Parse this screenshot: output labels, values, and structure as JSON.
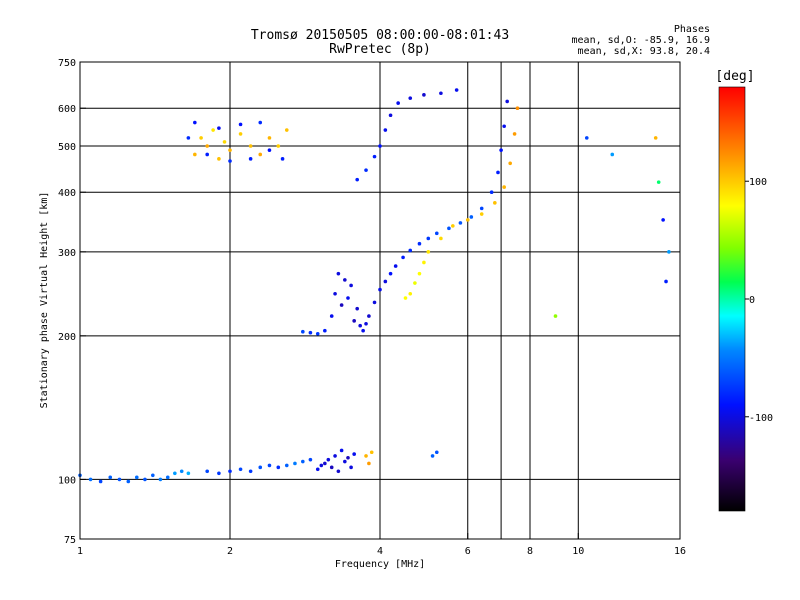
{
  "header": {
    "title": "Tromsø 20150505 08:00:00-08:01:43",
    "subtitle": "RwPretec (8p)",
    "stats_title": "Phases",
    "stats_o": "mean, sd,O: -85.9, 16.9",
    "stats_x": "mean, sd,X:  93.8, 20.4"
  },
  "colorbar": {
    "label": "[deg]",
    "ticks": [
      {
        "value": 100,
        "label": "100"
      },
      {
        "value": 0,
        "label": "0"
      },
      {
        "value": -100,
        "label": "-100"
      }
    ],
    "range": [
      -180,
      180
    ]
  },
  "chart_data": {
    "type": "scatter",
    "title": "Tromsø 20150505 08:00:00-08:01:43",
    "subtitle": "RwPretec (8p)",
    "xlabel": "Frequency [MHz]",
    "ylabel": "Stationary phase Virtual Height [km]",
    "xscale": "log",
    "yscale": "log",
    "xlim": [
      1,
      16
    ],
    "ylim": [
      75,
      750
    ],
    "xticks": [
      1,
      2,
      4,
      6,
      8,
      10,
      16
    ],
    "yticks": [
      75,
      100,
      200,
      300,
      400,
      500,
      600,
      750
    ],
    "xgrid": [
      2,
      4,
      6,
      7,
      8,
      10
    ],
    "ygrid": [
      100,
      200,
      300,
      400,
      500,
      600
    ],
    "color_variable": "phase [deg]",
    "series": [
      {
        "points": [
          [
            1.0,
            102,
            -60
          ],
          [
            1.05,
            100,
            -55
          ],
          [
            1.1,
            99,
            -70
          ],
          [
            1.15,
            101,
            -60
          ],
          [
            1.2,
            100,
            -65
          ],
          [
            1.25,
            99,
            -60
          ],
          [
            1.3,
            101,
            -55
          ],
          [
            1.35,
            100,
            -65
          ],
          [
            1.4,
            102,
            -60
          ],
          [
            1.45,
            100,
            -50
          ],
          [
            1.5,
            101,
            -55
          ],
          [
            1.55,
            103,
            -40
          ],
          [
            1.6,
            104,
            -45
          ],
          [
            1.65,
            103,
            -35
          ]
        ]
      },
      {
        "points": [
          [
            1.8,
            104,
            -70
          ],
          [
            1.9,
            103,
            -75
          ],
          [
            2.0,
            104,
            -80
          ],
          [
            2.1,
            105,
            -70
          ],
          [
            2.2,
            104,
            -75
          ],
          [
            2.3,
            106,
            -65
          ],
          [
            2.4,
            107,
            -70
          ],
          [
            2.5,
            106,
            -80
          ],
          [
            2.6,
            107,
            -60
          ],
          [
            2.7,
            108,
            -50
          ],
          [
            2.8,
            109,
            -60
          ],
          [
            2.9,
            110,
            -70
          ]
        ]
      },
      {
        "points": [
          [
            3.0,
            105,
            -95
          ],
          [
            3.05,
            107,
            -100
          ],
          [
            3.1,
            108,
            -105
          ],
          [
            3.15,
            110,
            -100
          ],
          [
            3.2,
            106,
            -110
          ],
          [
            3.25,
            112,
            -100
          ],
          [
            3.3,
            104,
            -105
          ],
          [
            3.35,
            115,
            -95
          ],
          [
            3.4,
            109,
            -100
          ],
          [
            3.45,
            111,
            -110
          ],
          [
            3.5,
            106,
            -100
          ],
          [
            3.55,
            113,
            -95
          ]
        ]
      },
      {
        "points": [
          [
            3.75,
            112,
            110
          ],
          [
            3.8,
            108,
            120
          ],
          [
            3.85,
            114,
            105
          ]
        ]
      },
      {
        "points": [
          [
            2.8,
            204,
            -70
          ],
          [
            2.9,
            203,
            -80
          ],
          [
            3.0,
            202,
            -75
          ],
          [
            3.1,
            205,
            -85
          ]
        ]
      },
      {
        "points": [
          [
            3.2,
            220,
            -95
          ],
          [
            3.25,
            245,
            -100
          ],
          [
            3.3,
            270,
            -100
          ],
          [
            3.35,
            232,
            -110
          ],
          [
            3.4,
            262,
            -105
          ],
          [
            3.45,
            240,
            -95
          ],
          [
            3.5,
            255,
            -100
          ],
          [
            3.55,
            215,
            -110
          ],
          [
            3.6,
            228,
            -105
          ],
          [
            3.65,
            210,
            -100
          ],
          [
            3.7,
            205,
            -95
          ],
          [
            3.75,
            212,
            -100
          ],
          [
            3.8,
            220,
            -105
          ],
          [
            3.9,
            235,
            -100
          ],
          [
            4.0,
            250,
            -95
          ],
          [
            4.1,
            260,
            -100
          ],
          [
            4.2,
            270,
            -90
          ],
          [
            4.3,
            280,
            -95
          ],
          [
            4.45,
            292,
            -85
          ],
          [
            4.6,
            302,
            -80
          ],
          [
            4.8,
            312,
            -80
          ],
          [
            5.0,
            320,
            -75
          ],
          [
            5.2,
            328,
            -70
          ],
          [
            5.5,
            336,
            -65
          ],
          [
            5.8,
            345,
            -65
          ],
          [
            6.1,
            355,
            -60
          ],
          [
            6.4,
            370,
            -70
          ],
          [
            6.7,
            400,
            -80
          ],
          [
            6.9,
            440,
            -85
          ],
          [
            7.0,
            490,
            -90
          ],
          [
            7.1,
            550,
            -95
          ],
          [
            7.2,
            620,
            -100
          ]
        ]
      },
      {
        "points": [
          [
            4.5,
            240,
            80
          ],
          [
            4.6,
            245,
            85
          ],
          [
            4.7,
            258,
            75
          ],
          [
            4.8,
            270,
            80
          ],
          [
            4.9,
            285,
            85
          ],
          [
            5.0,
            300,
            90
          ],
          [
            5.3,
            320,
            95
          ],
          [
            5.6,
            340,
            100
          ],
          [
            6.0,
            350,
            105
          ],
          [
            6.4,
            360,
            100
          ],
          [
            6.8,
            380,
            105
          ],
          [
            7.1,
            410,
            110
          ],
          [
            7.3,
            460,
            115
          ],
          [
            7.45,
            530,
            120
          ],
          [
            7.55,
            600,
            125
          ]
        ]
      },
      {
        "points": [
          [
            3.6,
            425,
            -85
          ],
          [
            3.75,
            445,
            -80
          ],
          [
            3.9,
            475,
            -85
          ],
          [
            4.0,
            500,
            -90
          ],
          [
            4.1,
            540,
            -95
          ],
          [
            4.2,
            580,
            -100
          ],
          [
            4.35,
            615,
            -95
          ],
          [
            4.6,
            630,
            -100
          ],
          [
            4.9,
            640,
            -105
          ],
          [
            5.3,
            645,
            -100
          ],
          [
            5.7,
            655,
            -95
          ]
        ]
      },
      {
        "points": [
          [
            1.7,
            480,
            110
          ],
          [
            1.75,
            520,
            100
          ],
          [
            1.8,
            500,
            115
          ],
          [
            1.85,
            540,
            90
          ],
          [
            1.9,
            470,
            105
          ],
          [
            1.95,
            510,
            95
          ],
          [
            2.0,
            490,
            110
          ],
          [
            2.1,
            530,
            100
          ],
          [
            2.2,
            500,
            105
          ],
          [
            2.3,
            480,
            115
          ],
          [
            2.4,
            520,
            110
          ],
          [
            2.5,
            500,
            100
          ],
          [
            2.6,
            540,
            105
          ]
        ]
      },
      {
        "points": [
          [
            1.65,
            520,
            -80
          ],
          [
            1.7,
            560,
            -90
          ],
          [
            1.8,
            480,
            -85
          ],
          [
            1.9,
            545,
            -95
          ],
          [
            2.0,
            465,
            -80
          ],
          [
            2.1,
            555,
            -90
          ],
          [
            2.2,
            470,
            -85
          ],
          [
            2.3,
            560,
            -80
          ],
          [
            2.4,
            490,
            -90
          ],
          [
            2.55,
            470,
            -85
          ]
        ]
      },
      {
        "points": [
          [
            5.1,
            112,
            -60
          ],
          [
            5.2,
            114,
            -65
          ],
          [
            9.0,
            220,
            50
          ],
          [
            10.4,
            520,
            -70
          ],
          [
            11.7,
            480,
            -40
          ],
          [
            14.3,
            520,
            110
          ],
          [
            14.5,
            420,
            10
          ],
          [
            14.8,
            350,
            -90
          ],
          [
            15.0,
            260,
            -85
          ],
          [
            15.2,
            300,
            -40
          ]
        ]
      }
    ]
  }
}
